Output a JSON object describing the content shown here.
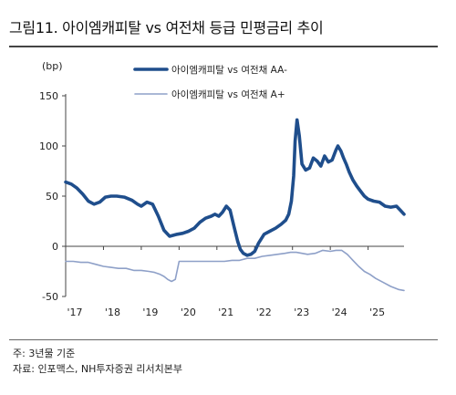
{
  "title": "그림11. 아이엠캐피탈 vs 여전채 등급 민평금리 추이",
  "notes": {
    "note": "주: 3년물 기준",
    "source": "자료: 인포맥스, NH투자증권 리서치본부"
  },
  "chart_data": {
    "type": "line",
    "title": "그림11. 아이엠캐피탈 vs 여전채 등급 민평금리 추이",
    "unit_label": "(bp)",
    "xlabel": "",
    "ylabel": "",
    "ylim": [
      -50,
      150
    ],
    "yticks": [
      -50,
      0,
      50,
      100,
      150
    ],
    "y_tick_labels": [
      "-50",
      "0",
      "50",
      "100",
      "150"
    ],
    "xlim": [
      2017.0,
      2025.95
    ],
    "xticks": [
      2017,
      2018,
      2019,
      2020,
      2021,
      2022,
      2023,
      2024,
      2025
    ],
    "x_tick_labels": [
      "'17",
      "'18",
      "'19",
      "'20",
      "'21",
      "'22",
      "'23",
      "'24",
      "'25"
    ],
    "grid": false,
    "legend_position": "top-right",
    "series": [
      {
        "name": "아이엠캐피탈 vs 여전채 AA-",
        "color": "#1f4e8c",
        "style": "thick",
        "x": [
          2017.0,
          2017.15,
          2017.3,
          2017.45,
          2017.6,
          2017.75,
          2017.9,
          2018.05,
          2018.2,
          2018.35,
          2018.55,
          2018.75,
          2018.9,
          2019.0,
          2019.15,
          2019.3,
          2019.45,
          2019.6,
          2019.75,
          2019.85,
          2019.95,
          2020.1,
          2020.25,
          2020.4,
          2020.55,
          2020.7,
          2020.85,
          2020.95,
          2021.05,
          2021.15,
          2021.25,
          2021.35,
          2021.45,
          2021.55,
          2021.62,
          2021.7,
          2021.8,
          2021.9,
          2022.0,
          2022.1,
          2022.25,
          2022.4,
          2022.55,
          2022.7,
          2022.82,
          2022.9,
          2022.97,
          2023.03,
          2023.07,
          2023.12,
          2023.18,
          2023.25,
          2023.35,
          2023.45,
          2023.55,
          2023.65,
          2023.75,
          2023.85,
          2023.95,
          2024.05,
          2024.15,
          2024.2,
          2024.28,
          2024.35,
          2024.42,
          2024.5,
          2024.6,
          2024.7,
          2024.8,
          2024.9,
          2025.0,
          2025.15,
          2025.3,
          2025.45,
          2025.6,
          2025.75,
          2025.85,
          2025.95
        ],
        "y": [
          64,
          62,
          58,
          52,
          45,
          42,
          44,
          49,
          50,
          50,
          49,
          46,
          42,
          40,
          44,
          42,
          30,
          16,
          10,
          11,
          12,
          13,
          15,
          18,
          24,
          28,
          30,
          32,
          30,
          34,
          40,
          36,
          20,
          5,
          -3,
          -7,
          -9,
          -8,
          -5,
          3,
          12,
          15,
          18,
          22,
          26,
          32,
          45,
          70,
          105,
          126,
          110,
          82,
          76,
          78,
          88,
          85,
          80,
          90,
          84,
          86,
          96,
          100,
          95,
          88,
          82,
          74,
          66,
          60,
          55,
          50,
          47,
          45,
          44,
          40,
          39,
          40,
          36,
          32
        ]
      },
      {
        "name": "아이엠캐피탈 vs 여전채 A+",
        "color": "#8ea0c8",
        "style": "thin",
        "x": [
          2017.0,
          2017.2,
          2017.4,
          2017.6,
          2017.8,
          2018.0,
          2018.2,
          2018.4,
          2018.6,
          2018.8,
          2019.0,
          2019.2,
          2019.35,
          2019.5,
          2019.6,
          2019.7,
          2019.8,
          2019.9,
          2020.0,
          2020.2,
          2020.4,
          2020.6,
          2020.8,
          2021.0,
          2021.2,
          2021.4,
          2021.6,
          2021.8,
          2022.0,
          2022.2,
          2022.4,
          2022.6,
          2022.8,
          2022.95,
          2023.1,
          2023.25,
          2023.4,
          2023.6,
          2023.8,
          2024.0,
          2024.15,
          2024.3,
          2024.45,
          2024.6,
          2024.75,
          2024.9,
          2025.05,
          2025.2,
          2025.4,
          2025.6,
          2025.8,
          2025.95
        ],
        "y": [
          -15,
          -15,
          -16,
          -16,
          -18,
          -20,
          -21,
          -22,
          -22,
          -24,
          -24,
          -25,
          -26,
          -28,
          -30,
          -33,
          -35,
          -33,
          -15,
          -15,
          -15,
          -15,
          -15,
          -15,
          -15,
          -14,
          -14,
          -12,
          -12,
          -10,
          -9,
          -8,
          -7,
          -6,
          -6,
          -7,
          -8,
          -7,
          -4,
          -5,
          -4,
          -4,
          -8,
          -14,
          -20,
          -25,
          -28,
          -32,
          -36,
          -40,
          -43,
          -44
        ]
      }
    ]
  }
}
